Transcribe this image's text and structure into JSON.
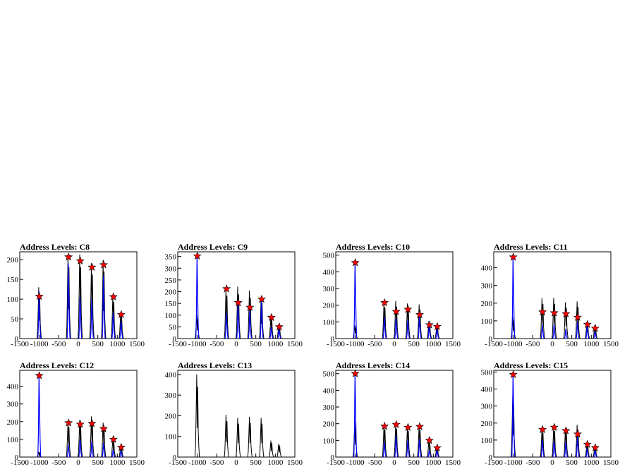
{
  "chart_data": [
    {
      "type": "histogram",
      "title": "Address Levels: C8",
      "xlim": [
        -1500,
        1500
      ],
      "ylim": [
        0,
        220
      ],
      "x_ticks": [
        "-1500",
        "-1000",
        "-500",
        "0",
        "500",
        "1000",
        "1500"
      ],
      "y_ticks": [
        "0",
        "50",
        "100",
        "150",
        "200"
      ],
      "peaks": [
        {
          "x": -1000,
          "black": 130,
          "blue": 120,
          "marker": 107
        },
        {
          "x": -250,
          "black": 213,
          "blue": 190,
          "marker": 207
        },
        {
          "x": 50,
          "black": 213,
          "blue": 105,
          "marker": 197
        },
        {
          "x": 350,
          "black": 191,
          "blue": 100,
          "marker": 181
        },
        {
          "x": 650,
          "black": 200,
          "blue": 160,
          "marker": 187
        },
        {
          "x": 900,
          "black": 110,
          "blue": 65,
          "marker": 106
        },
        {
          "x": 1100,
          "black": 65,
          "blue": 45,
          "marker": 61
        }
      ]
    },
    {
      "type": "histogram",
      "title": "Address Levels: C9",
      "xlim": [
        -1500,
        1500
      ],
      "ylim": [
        0,
        370
      ],
      "x_ticks": [
        "-1500",
        "-1000",
        "-500",
        "0",
        "500",
        "1000",
        "1500"
      ],
      "y_ticks": [
        "0",
        "50",
        "100",
        "150",
        "200",
        "250",
        "300",
        "350"
      ],
      "peaks": [
        {
          "x": -1000,
          "black": 100,
          "blue": 360,
          "marker": 352
        },
        {
          "x": -250,
          "black": 215,
          "blue": 110,
          "marker": 212
        },
        {
          "x": 50,
          "black": 222,
          "blue": 150,
          "marker": 153
        },
        {
          "x": 350,
          "black": 205,
          "blue": 120,
          "marker": 133
        },
        {
          "x": 650,
          "black": 180,
          "blue": 170,
          "marker": 168
        },
        {
          "x": 900,
          "black": 95,
          "blue": 50,
          "marker": 90
        },
        {
          "x": 1100,
          "black": 60,
          "blue": 40,
          "marker": 50
        }
      ]
    },
    {
      "type": "histogram",
      "title": "Address Levels: C10",
      "xlim": [
        -1500,
        1500
      ],
      "ylim": [
        0,
        520
      ],
      "x_ticks": [
        "-1500",
        "-1000",
        "-500",
        "0",
        "500",
        "1000",
        "1500"
      ],
      "y_ticks": [
        "0",
        "100",
        "200",
        "300",
        "400",
        "500"
      ],
      "peaks": [
        {
          "x": -1000,
          "black": 80,
          "blue": 470,
          "marker": 455
        },
        {
          "x": -250,
          "black": 220,
          "blue": 130,
          "marker": 215
        },
        {
          "x": 50,
          "black": 225,
          "blue": 120,
          "marker": 162
        },
        {
          "x": 350,
          "black": 210,
          "blue": 110,
          "marker": 175
        },
        {
          "x": 650,
          "black": 205,
          "blue": 140,
          "marker": 143
        },
        {
          "x": 900,
          "black": 105,
          "blue": 80,
          "marker": 82
        },
        {
          "x": 1100,
          "black": 80,
          "blue": 60,
          "marker": 72
        }
      ]
    },
    {
      "type": "histogram",
      "title": "Address Levels: C11",
      "xlim": [
        -1500,
        1500
      ],
      "ylim": [
        0,
        490
      ],
      "x_ticks": [
        "-1500",
        "-1000",
        "-500",
        "0",
        "500",
        "1000",
        "1500"
      ],
      "y_ticks": [
        "0",
        "100",
        "200",
        "300",
        "400"
      ],
      "peaks": [
        {
          "x": -1000,
          "black": 120,
          "blue": 470,
          "marker": 460
        },
        {
          "x": -250,
          "black": 230,
          "blue": 80,
          "marker": 150
        },
        {
          "x": 50,
          "black": 230,
          "blue": 80,
          "marker": 145
        },
        {
          "x": 350,
          "black": 205,
          "blue": 55,
          "marker": 140
        },
        {
          "x": 650,
          "black": 210,
          "blue": 95,
          "marker": 120
        },
        {
          "x": 900,
          "black": 95,
          "blue": 80,
          "marker": 80
        },
        {
          "x": 1100,
          "black": 75,
          "blue": 40,
          "marker": 58
        }
      ]
    },
    {
      "type": "histogram",
      "title": "Address Levels: C12",
      "xlim": [
        -1500,
        1500
      ],
      "ylim": [
        0,
        490
      ],
      "x_ticks": [
        "-1500",
        "-1000",
        "-500",
        "0",
        "500",
        "1000",
        "1500"
      ],
      "y_ticks": [
        "0",
        "100",
        "200",
        "300",
        "400"
      ],
      "peaks": [
        {
          "x": -1000,
          "black": 30,
          "blue": 470,
          "marker": 460
        },
        {
          "x": -250,
          "black": 200,
          "blue": 70,
          "marker": 193
        },
        {
          "x": 50,
          "black": 210,
          "blue": 100,
          "marker": 185
        },
        {
          "x": 350,
          "black": 230,
          "blue": 90,
          "marker": 190
        },
        {
          "x": 650,
          "black": 195,
          "blue": 80,
          "marker": 160
        },
        {
          "x": 900,
          "black": 105,
          "blue": 40,
          "marker": 100
        },
        {
          "x": 1100,
          "black": 70,
          "blue": 35,
          "marker": 55
        }
      ]
    },
    {
      "type": "histogram",
      "title": "Address Levels: C13",
      "xlim": [
        -1500,
        1500
      ],
      "ylim": [
        0,
        420
      ],
      "x_ticks": [
        "-1500",
        "-1000",
        "-500",
        "0",
        "500",
        "1000",
        "1500"
      ],
      "y_ticks": [
        "0",
        "100",
        "200",
        "300",
        "400"
      ],
      "peaks": [
        {
          "x": -1000,
          "black": 400,
          "blue": 0,
          "marker": null
        },
        {
          "x": -250,
          "black": 205,
          "blue": 0,
          "marker": null
        },
        {
          "x": 50,
          "black": 190,
          "blue": 0,
          "marker": null
        },
        {
          "x": 350,
          "black": 195,
          "blue": 0,
          "marker": null
        },
        {
          "x": 650,
          "black": 190,
          "blue": 0,
          "marker": null
        },
        {
          "x": 900,
          "black": 80,
          "blue": 0,
          "marker": null
        },
        {
          "x": 1100,
          "black": 65,
          "blue": 0,
          "marker": null
        }
      ]
    },
    {
      "type": "histogram",
      "title": "Address Levels: C14",
      "xlim": [
        -1500,
        1500
      ],
      "ylim": [
        0,
        520
      ],
      "x_ticks": [
        "-1500",
        "-1000",
        "-500",
        "0",
        "500",
        "1000",
        "1500"
      ],
      "y_ticks": [
        "0",
        "100",
        "200",
        "300",
        "400",
        "500"
      ],
      "peaks": [
        {
          "x": -1000,
          "black": 210,
          "blue": 515,
          "marker": 500
        },
        {
          "x": -250,
          "black": 195,
          "blue": 90,
          "marker": 185
        },
        {
          "x": 50,
          "black": 200,
          "blue": 130,
          "marker": 195
        },
        {
          "x": 350,
          "black": 185,
          "blue": 100,
          "marker": 178
        },
        {
          "x": 650,
          "black": 190,
          "blue": 110,
          "marker": 183
        },
        {
          "x": 900,
          "black": 100,
          "blue": 40,
          "marker": 100
        },
        {
          "x": 1100,
          "black": 60,
          "blue": 40,
          "marker": 55
        }
      ]
    },
    {
      "type": "histogram",
      "title": "Address Levels: C15",
      "xlim": [
        -1500,
        1500
      ],
      "ylim": [
        0,
        510
      ],
      "x_ticks": [
        "-1500",
        "-1000",
        "-500",
        "0",
        "500",
        "1000",
        "1500"
      ],
      "y_ticks": [
        "0",
        "100",
        "200",
        "300",
        "400",
        "500"
      ],
      "peaks": [
        {
          "x": -1000,
          "black": 360,
          "blue": 500,
          "marker": 485
        },
        {
          "x": -250,
          "black": 170,
          "blue": 100,
          "marker": 162
        },
        {
          "x": 50,
          "black": 180,
          "blue": 95,
          "marker": 175
        },
        {
          "x": 350,
          "black": 170,
          "blue": 90,
          "marker": 155
        },
        {
          "x": 650,
          "black": 190,
          "blue": 120,
          "marker": 135
        },
        {
          "x": 900,
          "black": 80,
          "blue": 50,
          "marker": 75
        },
        {
          "x": 1100,
          "black": 60,
          "blue": 40,
          "marker": 55
        }
      ]
    }
  ],
  "colors": {
    "trace_primary": "#000000",
    "trace_secondary": "#0000ff",
    "marker_fill": "#ff0000",
    "marker_stroke": "#000000",
    "frame": "#000000"
  }
}
